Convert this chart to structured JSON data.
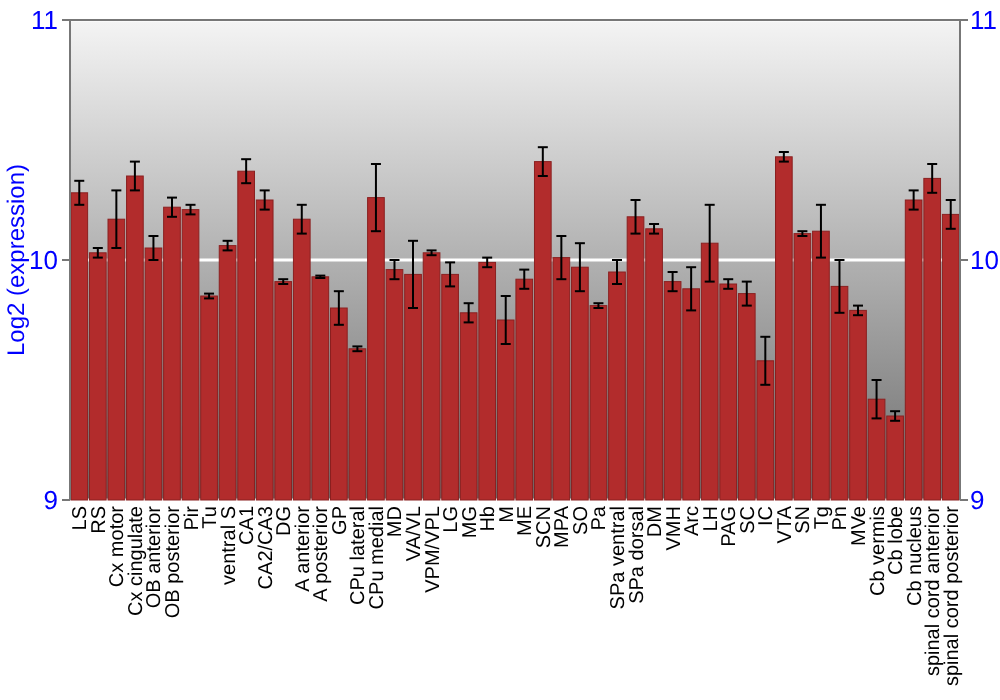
{
  "chart_data": {
    "type": "bar",
    "ylabel": "Log2 (expression)",
    "categories": [
      "LS",
      "RS",
      "Cx motor",
      "Cx cingulate",
      "OB anterior",
      "OB posterior",
      "Pir",
      "Tu",
      "ventral S",
      "CA1",
      "CA2/CA3",
      "DG",
      "A anterior",
      "A posterior",
      "GP",
      "CPu lateral",
      "CPu medial",
      "MD",
      "VA/VL",
      "VPM/VPL",
      "LG",
      "MG",
      "Hb",
      "M",
      "ME",
      "SCN",
      "MPA",
      "SO",
      "Pa",
      "SPa ventral",
      "SPa dorsal",
      "DM",
      "VMH",
      "Arc",
      "LH",
      "PAG",
      "SC",
      "IC",
      "VTA",
      "SN",
      "Tg",
      "Pn",
      "MVe",
      "Cb vermis",
      "Cb lobe",
      "Cb nucleus",
      "spinal cord anterior",
      "spinal cord posterior"
    ],
    "values": [
      10.28,
      10.03,
      10.17,
      10.35,
      10.05,
      10.22,
      10.21,
      9.85,
      10.06,
      10.37,
      10.25,
      9.91,
      10.17,
      9.93,
      9.8,
      9.63,
      10.26,
      9.96,
      9.94,
      10.03,
      9.94,
      9.78,
      9.99,
      9.75,
      9.92,
      10.41,
      10.01,
      9.97,
      9.81,
      9.95,
      10.18,
      10.13,
      9.91,
      9.88,
      10.07,
      9.9,
      9.86,
      9.58,
      10.43,
      10.11,
      10.12,
      9.89,
      9.79,
      9.42,
      9.35,
      10.25,
      10.34,
      10.19
    ],
    "errors": [
      0.05,
      0.02,
      0.12,
      0.06,
      0.05,
      0.04,
      0.02,
      0.01,
      0.02,
      0.05,
      0.04,
      0.01,
      0.06,
      0.005,
      0.07,
      0.01,
      0.14,
      0.04,
      0.14,
      0.01,
      0.05,
      0.04,
      0.02,
      0.1,
      0.04,
      0.06,
      0.09,
      0.1,
      0.01,
      0.05,
      0.07,
      0.02,
      0.04,
      0.09,
      0.16,
      0.02,
      0.05,
      0.1,
      0.02,
      0.01,
      0.11,
      0.11,
      0.02,
      0.08,
      0.02,
      0.04,
      0.06,
      0.06
    ],
    "color": "#b22c2c",
    "ylim": [
      9,
      11
    ],
    "yticks": [
      9,
      10,
      11
    ],
    "y2lim": [
      9,
      11
    ],
    "y2ticks": [
      9,
      10,
      11
    ],
    "grid": "y"
  }
}
